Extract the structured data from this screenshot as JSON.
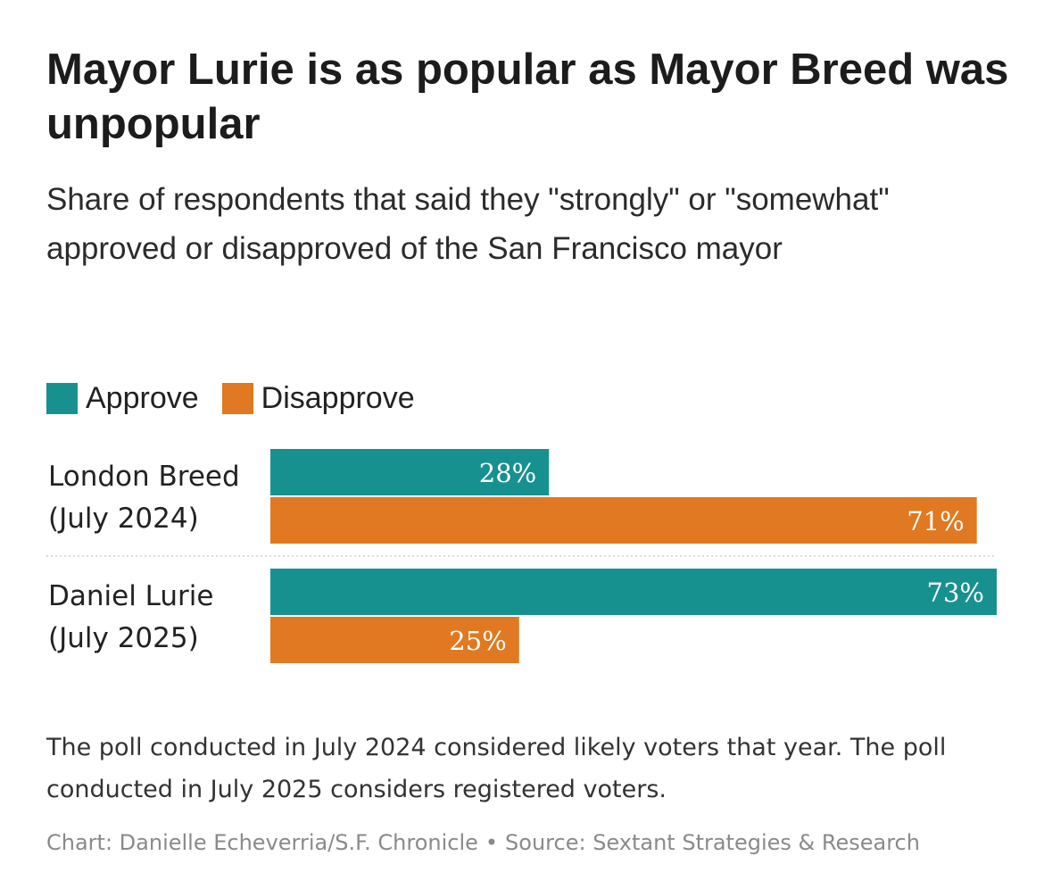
{
  "header": {
    "title": "Mayor Lurie is as popular as Mayor Breed was unpopular",
    "subtitle": "Share of respondents that said they \"strongly\" or \"somewhat\" approved or disapproved of the San Francisco mayor"
  },
  "legend": {
    "items": [
      {
        "label": "Approve",
        "color": "#17918f"
      },
      {
        "label": "Disapprove",
        "color": "#e07921"
      }
    ]
  },
  "chart_data": {
    "type": "bar",
    "orientation": "horizontal",
    "title": "Mayor Lurie is as popular as Mayor Breed was unpopular",
    "categories": [
      {
        "name": "London Breed",
        "period": "(July 2024)"
      },
      {
        "name": "Daniel Lurie",
        "period": "(July 2025)"
      }
    ],
    "series": [
      {
        "name": "Approve",
        "color": "#17918f",
        "values": [
          28,
          73
        ],
        "labels": [
          "28%",
          "73%"
        ]
      },
      {
        "name": "Disapprove",
        "color": "#e07921",
        "values": [
          71,
          25
        ],
        "labels": [
          "71%",
          "25%"
        ]
      }
    ],
    "xlim": [
      0,
      73
    ],
    "unit": "%",
    "legend_position": "top-left"
  },
  "footer": {
    "note": "The poll conducted in July 2024 considered likely voters that year. The poll conducted in July 2025 considers registered voters.",
    "credit": "Chart: Danielle Echeverria/S.F. Chronicle",
    "separator": "•",
    "source": "Source: Sextant Strategies & Research"
  }
}
